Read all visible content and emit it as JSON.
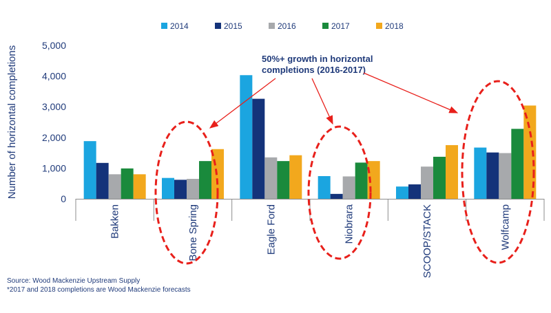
{
  "chart_data": {
    "type": "bar",
    "ylabel": "Number of horizontal completions",
    "ylim": [
      0,
      5000
    ],
    "yticks": [
      "0",
      "1,000",
      "2,000",
      "3,000",
      "4,000",
      "5,000"
    ],
    "ytick_values": [
      0,
      1000,
      2000,
      3000,
      4000,
      5000
    ],
    "categories": [
      "Bakken",
      "Bone Spring",
      "Eagle Ford",
      "Niobrara",
      "SCOOP/STACK",
      "Wolfcamp"
    ],
    "series": [
      {
        "name": "2014",
        "color": "#1ba5e0",
        "values": [
          1880,
          680,
          4030,
          740,
          400,
          1670
        ]
      },
      {
        "name": "2015",
        "color": "#14337a",
        "values": [
          1170,
          620,
          3260,
          160,
          470,
          1510
        ]
      },
      {
        "name": "2016",
        "color": "#a7a9ac",
        "values": [
          800,
          650,
          1350,
          730,
          1050,
          1490
        ]
      },
      {
        "name": "2017",
        "color": "#1a8a3c",
        "values": [
          990,
          1230,
          1230,
          1180,
          1370,
          2280
        ]
      },
      {
        "name": "2018",
        "color": "#f2a81d",
        "values": [
          800,
          1620,
          1420,
          1230,
          1750,
          3040
        ]
      }
    ],
    "legend_position": "top",
    "grid": false,
    "annotation": {
      "lines": [
        "50%+ growth in horizontal",
        "completions (2016-2017)"
      ],
      "highlighted_categories": [
        "Bone Spring",
        "Niobrara",
        "Wolfcamp"
      ],
      "highlight_color": "#e8201b"
    }
  },
  "footnotes": {
    "source": "Source: Wood Mackenzie Upstream Supply",
    "forecast": "*2017 and 2018 completions are Wood Mackenzie forecasts"
  }
}
